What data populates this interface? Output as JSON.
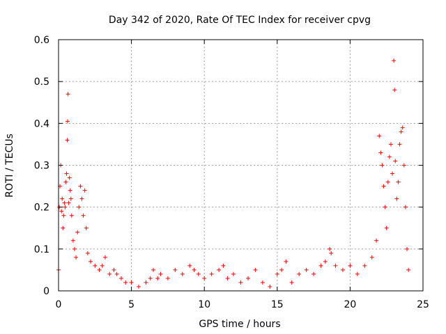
{
  "chart_data": {
    "type": "scatter",
    "title": "Day 342 of 2020, Rate Of TEC Index for receiver cpvg",
    "xlabel": "GPS time / hours",
    "ylabel": "ROTI / TECUs",
    "xlim": [
      0,
      25
    ],
    "ylim": [
      0,
      0.6
    ],
    "xticks": [
      0,
      5,
      10,
      15,
      20,
      25
    ],
    "yticks": [
      0,
      0.1,
      0.2,
      0.3,
      0.4,
      0.5,
      0.6
    ],
    "xtick_labels": [
      "0",
      "5",
      "10",
      "15",
      "20",
      "25"
    ],
    "ytick_labels": [
      "0",
      "0.1",
      "0.2",
      "0.3",
      "0.4",
      "0.5",
      "0.6"
    ],
    "grid": true,
    "marker": "+",
    "marker_color": "#ff0000",
    "series": [
      {
        "values": [
          [
            0.0,
            0.05
          ],
          [
            0.05,
            0.2
          ],
          [
            0.1,
            0.25
          ],
          [
            0.15,
            0.3
          ],
          [
            0.2,
            0.19
          ],
          [
            0.25,
            0.22
          ],
          [
            0.3,
            0.15
          ],
          [
            0.35,
            0.18
          ],
          [
            0.4,
            0.21
          ],
          [
            0.45,
            0.2
          ],
          [
            0.5,
            0.26
          ],
          [
            0.55,
            0.28
          ],
          [
            0.6,
            0.36
          ],
          [
            0.62,
            0.405
          ],
          [
            0.65,
            0.47
          ],
          [
            0.7,
            0.21
          ],
          [
            0.75,
            0.27
          ],
          [
            0.8,
            0.24
          ],
          [
            0.85,
            0.22
          ],
          [
            0.9,
            0.18
          ],
          [
            1.0,
            0.12
          ],
          [
            1.1,
            0.1
          ],
          [
            1.2,
            0.08
          ],
          [
            1.3,
            0.14
          ],
          [
            1.4,
            0.2
          ],
          [
            1.5,
            0.25
          ],
          [
            1.6,
            0.22
          ],
          [
            1.7,
            0.18
          ],
          [
            1.8,
            0.24
          ],
          [
            1.9,
            0.15
          ],
          [
            2.0,
            0.09
          ],
          [
            2.2,
            0.07
          ],
          [
            2.5,
            0.06
          ],
          [
            2.8,
            0.05
          ],
          [
            3.0,
            0.06
          ],
          [
            3.2,
            0.08
          ],
          [
            3.5,
            0.04
          ],
          [
            3.8,
            0.05
          ],
          [
            4.0,
            0.04
          ],
          [
            4.3,
            0.03
          ],
          [
            4.6,
            0.02
          ],
          [
            5.0,
            0.02
          ],
          [
            5.5,
            0.01
          ],
          [
            6.0,
            0.02
          ],
          [
            6.3,
            0.03
          ],
          [
            6.5,
            0.05
          ],
          [
            6.8,
            0.03
          ],
          [
            7.0,
            0.04
          ],
          [
            7.5,
            0.03
          ],
          [
            8.0,
            0.05
          ],
          [
            8.5,
            0.04
          ],
          [
            9.0,
            0.06
          ],
          [
            9.3,
            0.05
          ],
          [
            9.6,
            0.04
          ],
          [
            10.0,
            0.03
          ],
          [
            10.5,
            0.04
          ],
          [
            11.0,
            0.05
          ],
          [
            11.3,
            0.06
          ],
          [
            11.6,
            0.03
          ],
          [
            12.0,
            0.04
          ],
          [
            12.5,
            0.02
          ],
          [
            13.0,
            0.03
          ],
          [
            13.5,
            0.05
          ],
          [
            14.0,
            0.02
          ],
          [
            14.5,
            0.01
          ],
          [
            15.0,
            0.04
          ],
          [
            15.3,
            0.05
          ],
          [
            15.6,
            0.07
          ],
          [
            16.0,
            0.02
          ],
          [
            16.5,
            0.04
          ],
          [
            17.0,
            0.05
          ],
          [
            17.5,
            0.04
          ],
          [
            18.0,
            0.06
          ],
          [
            18.3,
            0.07
          ],
          [
            18.6,
            0.1
          ],
          [
            18.7,
            0.09
          ],
          [
            19.0,
            0.06
          ],
          [
            19.5,
            0.05
          ],
          [
            20.0,
            0.06
          ],
          [
            20.5,
            0.04
          ],
          [
            21.0,
            0.06
          ],
          [
            21.5,
            0.08
          ],
          [
            21.8,
            0.12
          ],
          [
            22.0,
            0.37
          ],
          [
            22.1,
            0.33
          ],
          [
            22.2,
            0.3
          ],
          [
            22.3,
            0.25
          ],
          [
            22.4,
            0.2
          ],
          [
            22.5,
            0.15
          ],
          [
            22.6,
            0.26
          ],
          [
            22.7,
            0.32
          ],
          [
            22.8,
            0.35
          ],
          [
            22.9,
            0.28
          ],
          [
            23.0,
            0.55
          ],
          [
            23.05,
            0.48
          ],
          [
            23.1,
            0.31
          ],
          [
            23.2,
            0.22
          ],
          [
            23.3,
            0.26
          ],
          [
            23.4,
            0.35
          ],
          [
            23.5,
            0.38
          ],
          [
            23.6,
            0.39
          ],
          [
            23.7,
            0.3
          ],
          [
            23.8,
            0.2
          ],
          [
            23.9,
            0.1
          ],
          [
            24.0,
            0.05
          ]
        ]
      }
    ]
  }
}
